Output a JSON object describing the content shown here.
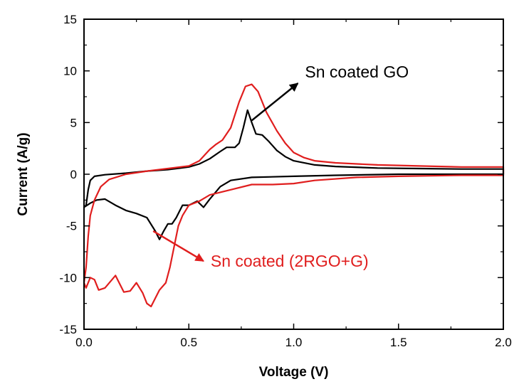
{
  "chart_data": {
    "type": "line",
    "title": "",
    "xlabel": "Voltage (V)",
    "ylabel": "Current (A/g)",
    "xlim": [
      0.0,
      2.0
    ],
    "ylim": [
      -15,
      15
    ],
    "x_ticks": [
      "0.0",
      "0.5",
      "1.0",
      "1.5",
      "2.0"
    ],
    "y_ticks": [
      "15",
      "10",
      "5",
      "0",
      "-5",
      "-10",
      "-15"
    ],
    "x_tick_values": [
      0.0,
      0.5,
      1.0,
      1.5,
      2.0
    ],
    "y_tick_values": [
      15,
      10,
      5,
      0,
      -5,
      -10,
      -15
    ],
    "grid": false,
    "series": [
      {
        "name": "Sn coated GO",
        "color": "#000000",
        "points": [
          [
            0.0,
            -3.2
          ],
          [
            0.01,
            -3.0
          ],
          [
            0.02,
            -1.5
          ],
          [
            0.03,
            -0.6
          ],
          [
            0.05,
            -0.2
          ],
          [
            0.1,
            -0.05
          ],
          [
            0.2,
            0.1
          ],
          [
            0.3,
            0.3
          ],
          [
            0.4,
            0.45
          ],
          [
            0.5,
            0.7
          ],
          [
            0.55,
            1.0
          ],
          [
            0.6,
            1.5
          ],
          [
            0.65,
            2.2
          ],
          [
            0.68,
            2.6
          ],
          [
            0.72,
            2.6
          ],
          [
            0.74,
            3.0
          ],
          [
            0.76,
            4.5
          ],
          [
            0.78,
            6.2
          ],
          [
            0.8,
            5.0
          ],
          [
            0.82,
            3.9
          ],
          [
            0.85,
            3.8
          ],
          [
            0.88,
            3.2
          ],
          [
            0.92,
            2.3
          ],
          [
            0.96,
            1.7
          ],
          [
            1.0,
            1.3
          ],
          [
            1.1,
            0.9
          ],
          [
            1.2,
            0.75
          ],
          [
            1.4,
            0.6
          ],
          [
            1.6,
            0.55
          ],
          [
            1.8,
            0.5
          ],
          [
            2.0,
            0.5
          ],
          [
            2.0,
            0.0
          ],
          [
            1.8,
            0.0
          ],
          [
            1.5,
            0.0
          ],
          [
            1.2,
            -0.1
          ],
          [
            1.0,
            -0.2
          ],
          [
            0.8,
            -0.3
          ],
          [
            0.7,
            -0.6
          ],
          [
            0.65,
            -1.2
          ],
          [
            0.6,
            -2.4
          ],
          [
            0.57,
            -3.2
          ],
          [
            0.54,
            -2.6
          ],
          [
            0.5,
            -3.0
          ],
          [
            0.47,
            -3.0
          ],
          [
            0.44,
            -4.2
          ],
          [
            0.42,
            -4.8
          ],
          [
            0.4,
            -4.8
          ],
          [
            0.38,
            -5.5
          ],
          [
            0.36,
            -6.3
          ],
          [
            0.34,
            -5.5
          ],
          [
            0.3,
            -4.2
          ],
          [
            0.25,
            -3.8
          ],
          [
            0.2,
            -3.5
          ],
          [
            0.15,
            -3.0
          ],
          [
            0.1,
            -2.4
          ],
          [
            0.06,
            -2.5
          ],
          [
            0.03,
            -2.8
          ],
          [
            0.0,
            -3.2
          ]
        ]
      },
      {
        "name": "Sn coated (2RGO+G)",
        "color": "#e01e1e",
        "points": [
          [
            0.0,
            -10.5
          ],
          [
            0.01,
            -9.0
          ],
          [
            0.02,
            -6.0
          ],
          [
            0.03,
            -4.0
          ],
          [
            0.05,
            -2.5
          ],
          [
            0.08,
            -1.2
          ],
          [
            0.12,
            -0.5
          ],
          [
            0.2,
            0.0
          ],
          [
            0.3,
            0.3
          ],
          [
            0.4,
            0.55
          ],
          [
            0.5,
            0.8
          ],
          [
            0.55,
            1.3
          ],
          [
            0.6,
            2.4
          ],
          [
            0.63,
            2.9
          ],
          [
            0.66,
            3.3
          ],
          [
            0.7,
            4.5
          ],
          [
            0.74,
            7.0
          ],
          [
            0.77,
            8.5
          ],
          [
            0.8,
            8.7
          ],
          [
            0.83,
            8.0
          ],
          [
            0.87,
            6.0
          ],
          [
            0.92,
            4.2
          ],
          [
            0.96,
            3.0
          ],
          [
            1.0,
            2.1
          ],
          [
            1.05,
            1.6
          ],
          [
            1.1,
            1.3
          ],
          [
            1.2,
            1.1
          ],
          [
            1.4,
            0.9
          ],
          [
            1.6,
            0.8
          ],
          [
            1.8,
            0.7
          ],
          [
            2.0,
            0.7
          ],
          [
            2.0,
            -0.1
          ],
          [
            1.8,
            -0.1
          ],
          [
            1.5,
            -0.2
          ],
          [
            1.3,
            -0.3
          ],
          [
            1.1,
            -0.6
          ],
          [
            1.0,
            -0.9
          ],
          [
            0.9,
            -1.0
          ],
          [
            0.8,
            -1.0
          ],
          [
            0.7,
            -1.5
          ],
          [
            0.6,
            -2.0
          ],
          [
            0.55,
            -2.6
          ],
          [
            0.5,
            -3.0
          ],
          [
            0.47,
            -4.0
          ],
          [
            0.45,
            -5.0
          ],
          [
            0.43,
            -7.0
          ],
          [
            0.41,
            -9.0
          ],
          [
            0.39,
            -10.5
          ],
          [
            0.36,
            -11.2
          ],
          [
            0.34,
            -12.0
          ],
          [
            0.32,
            -12.8
          ],
          [
            0.3,
            -12.5
          ],
          [
            0.28,
            -11.5
          ],
          [
            0.25,
            -10.5
          ],
          [
            0.22,
            -11.3
          ],
          [
            0.19,
            -11.4
          ],
          [
            0.15,
            -9.8
          ],
          [
            0.1,
            -11.0
          ],
          [
            0.07,
            -11.2
          ],
          [
            0.05,
            -10.2
          ],
          [
            0.03,
            -10.0
          ],
          [
            0.01,
            -11.0
          ],
          [
            0.0,
            -10.5
          ]
        ]
      }
    ],
    "annotations": [
      {
        "text": "Sn coated GO",
        "series": "Sn coated GO",
        "color": "#000000",
        "arrow_from": [
          0.8,
          5.2
        ],
        "arrow_to": [
          1.02,
          8.8
        ]
      },
      {
        "text": "Sn coated (2RGO+G)",
        "series": "Sn coated (2RGO+G)",
        "color": "#e01e1e",
        "arrow_from": [
          0.33,
          -5.5
        ],
        "arrow_to": [
          0.57,
          -8.4
        ]
      }
    ]
  }
}
